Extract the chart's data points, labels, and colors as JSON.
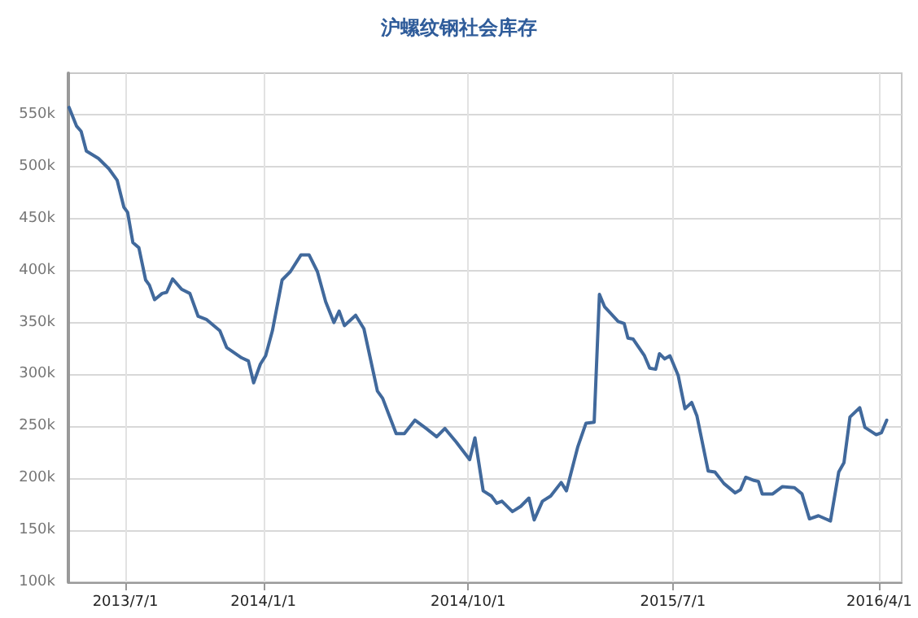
{
  "chart_data": {
    "type": "line",
    "title": "沪螺纹钢社会库存",
    "x": [
      "2013-04-17",
      "2013-04-27",
      "2013-05-03",
      "2013-05-10",
      "2013-05-26",
      "2013-06-09",
      "2013-06-20",
      "2013-06-29",
      "2013-07-04",
      "2013-07-11",
      "2013-07-19",
      "2013-07-28",
      "2013-08-02",
      "2013-08-09",
      "2013-08-19",
      "2013-08-25",
      "2013-09-02",
      "2013-09-14",
      "2013-09-25",
      "2013-10-06",
      "2013-10-17",
      "2013-11-04",
      "2013-11-13",
      "2013-12-03",
      "2013-12-12",
      "2013-12-19",
      "2013-12-28",
      "2014-01-04",
      "2014-01-13",
      "2014-01-26",
      "2014-02-06",
      "2014-02-20",
      "2014-03-03",
      "2014-03-14",
      "2014-03-25",
      "2014-04-05",
      "2014-04-12",
      "2014-04-19",
      "2014-05-04",
      "2014-05-15",
      "2014-06-02",
      "2014-06-09",
      "2014-06-27",
      "2014-07-08",
      "2014-07-22",
      "2014-08-06",
      "2014-08-20",
      "2014-08-31",
      "2014-09-15",
      "2014-10-03",
      "2014-10-10",
      "2014-10-21",
      "2014-11-01",
      "2014-11-08",
      "2014-11-15",
      "2014-11-29",
      "2014-12-10",
      "2014-12-21",
      "2014-12-28",
      "2015-01-08",
      "2015-01-19",
      "2015-02-02",
      "2015-02-09",
      "2015-02-24",
      "2015-03-07",
      "2015-03-18",
      "2015-03-25",
      "2015-04-01",
      "2015-04-19",
      "2015-04-27",
      "2015-05-02",
      "2015-05-09",
      "2015-05-24",
      "2015-05-31",
      "2015-06-08",
      "2015-06-13",
      "2015-06-20",
      "2015-06-27",
      "2015-07-08",
      "2015-07-17",
      "2015-07-26",
      "2015-08-02",
      "2015-08-17",
      "2015-08-26",
      "2015-09-07",
      "2015-09-22",
      "2015-09-29",
      "2015-10-06",
      "2015-10-17",
      "2015-10-23",
      "2015-10-28",
      "2015-11-11",
      "2015-11-24",
      "2015-12-10",
      "2015-12-20",
      "2015-12-30",
      "2016-01-11",
      "2016-01-27",
      "2016-02-07",
      "2016-02-14",
      "2016-02-22",
      "2016-03-06",
      "2016-03-13",
      "2016-03-28",
      "2016-04-04",
      "2016-04-11"
    ],
    "series": [
      {
        "color": "#41699c",
        "values": [
          557000,
          539000,
          534000,
          515000,
          508000,
          498000,
          487000,
          461000,
          456000,
          427000,
          422000,
          391000,
          386000,
          372000,
          378000,
          379000,
          392000,
          382000,
          378000,
          356000,
          353000,
          342000,
          326000,
          316000,
          313000,
          292000,
          310000,
          318000,
          342000,
          391000,
          399000,
          415000,
          415000,
          399000,
          370000,
          350000,
          361000,
          347000,
          357000,
          344000,
          284000,
          277000,
          243000,
          243000,
          256000,
          248000,
          240000,
          248000,
          235000,
          218000,
          239000,
          188000,
          183000,
          176000,
          178000,
          168000,
          173000,
          181000,
          160000,
          178000,
          183000,
          196000,
          188000,
          230000,
          253000,
          254000,
          377000,
          365000,
          351000,
          349000,
          335000,
          334000,
          318000,
          306000,
          305000,
          320000,
          315000,
          318000,
          299000,
          267000,
          273000,
          260000,
          207000,
          206000,
          195000,
          186000,
          189000,
          201000,
          198000,
          197000,
          185000,
          185000,
          192000,
          191000,
          185000,
          161000,
          164000,
          159000,
          206000,
          215000,
          259000,
          268000,
          249000,
          242000,
          244000,
          256000
        ]
      }
    ],
    "xlim": [
      "2013-04-16",
      "2016-05-01"
    ],
    "xticks": [
      {
        "value": "2013-07-01",
        "label": "2013/7/1"
      },
      {
        "value": "2014-01-01",
        "label": "2014/1/1"
      },
      {
        "value": "2014-10-01",
        "label": "2014/10/1"
      },
      {
        "value": "2015-07-01",
        "label": "2015/7/1"
      },
      {
        "value": "2016-04-01",
        "label": "2016/4/1"
      }
    ],
    "ylim": [
      100000,
      590000
    ],
    "yticks": [
      {
        "value": 100000,
        "label": "100k"
      },
      {
        "value": 150000,
        "label": "150k"
      },
      {
        "value": 200000,
        "label": "200k"
      },
      {
        "value": 250000,
        "label": "250k"
      },
      {
        "value": 300000,
        "label": "300k"
      },
      {
        "value": 350000,
        "label": "350k"
      },
      {
        "value": 400000,
        "label": "400k"
      },
      {
        "value": 450000,
        "label": "450k"
      },
      {
        "value": 500000,
        "label": "500k"
      },
      {
        "value": 550000,
        "label": "550k"
      }
    ],
    "grid": true,
    "marker": "none",
    "line_style": "solid"
  }
}
